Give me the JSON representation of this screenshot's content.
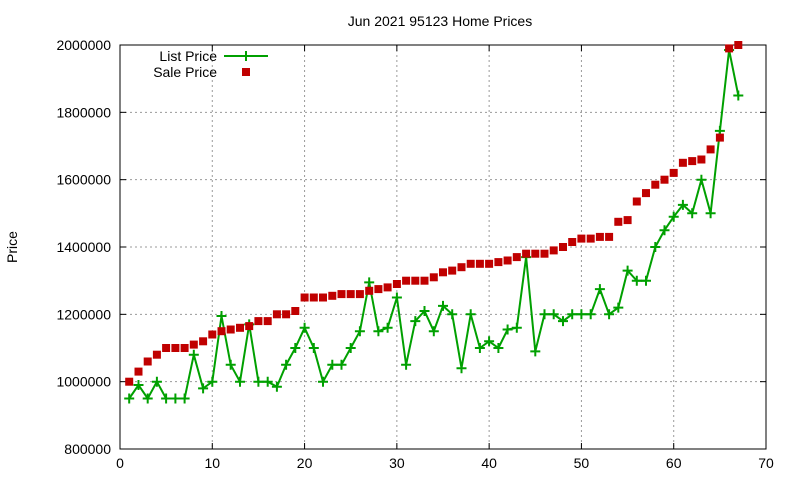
{
  "chart_data": {
    "type": "line",
    "title": "Jun 2021 95123 Home Prices",
    "xlabel": "",
    "ylabel": "Price",
    "xlim": [
      0,
      70
    ],
    "ylim": [
      800000,
      2000000
    ],
    "x_ticks": [
      "0",
      "10",
      "20",
      "30",
      "40",
      "50",
      "60",
      "70"
    ],
    "y_ticks": [
      "800000",
      "1000000",
      "1200000",
      "1400000",
      "1600000",
      "1800000",
      "2000000"
    ],
    "grid": true,
    "legend_position": "top-left",
    "series": [
      {
        "name": "List Price",
        "color": "#00a000",
        "marker": "plus",
        "line": true,
        "x": [
          1,
          2,
          3,
          4,
          5,
          6,
          7,
          8,
          9,
          10,
          11,
          12,
          13,
          14,
          15,
          16,
          17,
          18,
          19,
          20,
          21,
          22,
          23,
          24,
          25,
          26,
          27,
          28,
          29,
          30,
          31,
          32,
          33,
          34,
          35,
          36,
          37,
          38,
          39,
          40,
          41,
          42,
          43,
          44,
          45,
          46,
          47,
          48,
          49,
          50,
          51,
          52,
          53,
          54,
          55,
          56,
          57,
          58,
          59,
          60,
          61,
          62,
          63,
          64,
          65,
          66,
          67
        ],
        "values": [
          950000,
          990000,
          950000,
          1000000,
          950000,
          950000,
          950000,
          1080000,
          980000,
          1000000,
          1195000,
          1050000,
          1000000,
          1170000,
          1000000,
          1000000,
          985000,
          1050000,
          1100000,
          1160000,
          1100000,
          1000000,
          1050000,
          1050000,
          1100000,
          1150000,
          1295000,
          1150000,
          1160000,
          1250000,
          1050000,
          1180000,
          1210000,
          1150000,
          1225000,
          1200000,
          1040000,
          1200000,
          1100000,
          1120000,
          1100000,
          1155000,
          1160000,
          1370000,
          1090000,
          1200000,
          1200000,
          1180000,
          1200000,
          1200000,
          1200000,
          1275000,
          1200000,
          1220000,
          1330000,
          1300000,
          1300000,
          1400000,
          1450000,
          1490000,
          1525000,
          1500000,
          1600000,
          1500000,
          1745000,
          1985000,
          1850000
        ]
      },
      {
        "name": "Sale Price",
        "color": "#c00000",
        "marker": "square",
        "line": false,
        "x": [
          1,
          2,
          3,
          4,
          5,
          6,
          7,
          8,
          9,
          10,
          11,
          12,
          13,
          14,
          15,
          16,
          17,
          18,
          19,
          20,
          21,
          22,
          23,
          24,
          25,
          26,
          27,
          28,
          29,
          30,
          31,
          32,
          33,
          34,
          35,
          36,
          37,
          38,
          39,
          40,
          41,
          42,
          43,
          44,
          45,
          46,
          47,
          48,
          49,
          50,
          51,
          52,
          53,
          54,
          55,
          56,
          57,
          58,
          59,
          60,
          61,
          62,
          63,
          64,
          65,
          66,
          67
        ],
        "values": [
          1000000,
          1030000,
          1060000,
          1080000,
          1100000,
          1100000,
          1100000,
          1110000,
          1120000,
          1140000,
          1150000,
          1155000,
          1160000,
          1165000,
          1180000,
          1180000,
          1200000,
          1200000,
          1210000,
          1250000,
          1250000,
          1250000,
          1255000,
          1260000,
          1260000,
          1260000,
          1270000,
          1275000,
          1280000,
          1290000,
          1300000,
          1300000,
          1300000,
          1310000,
          1325000,
          1330000,
          1340000,
          1350000,
          1350000,
          1350000,
          1355000,
          1360000,
          1370000,
          1380000,
          1380000,
          1380000,
          1390000,
          1400000,
          1415000,
          1425000,
          1425000,
          1430000,
          1430000,
          1475000,
          1480000,
          1535000,
          1560000,
          1585000,
          1600000,
          1620000,
          1650000,
          1655000,
          1660000,
          1690000,
          1725000,
          1990000,
          2000000
        ]
      }
    ]
  }
}
